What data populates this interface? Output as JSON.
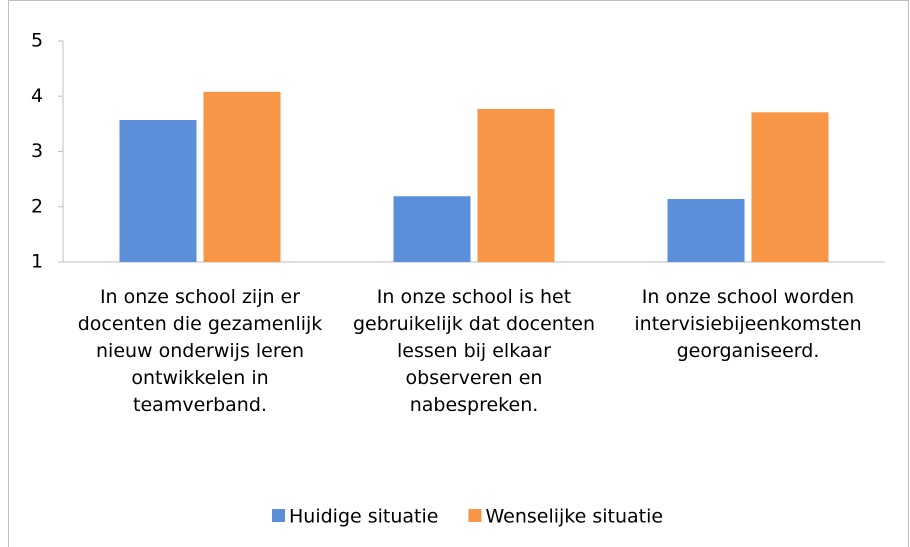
{
  "chart_data": {
    "type": "bar",
    "categories": [
      "In onze school zijn er docenten die gezamenlijk nieuw onderwijs leren ontwikkelen in teamverband.",
      "In onze school is het gebruikelijk dat docenten lessen bij elkaar observeren en nabespreken.",
      "In onze school worden intervisiebijeenkomsten georganiseerd."
    ],
    "series": [
      {
        "name": "Huidige situatie",
        "color": "#5b8fd9",
        "values": [
          3.57,
          2.19,
          2.14
        ]
      },
      {
        "name": "Wenselijke situatie",
        "color": "#f79646",
        "values": [
          4.08,
          3.77,
          3.71
        ]
      }
    ],
    "ylim": [
      1,
      5
    ],
    "yticks": [
      1,
      2,
      3,
      4,
      5
    ],
    "grid": false,
    "legend": "bottom"
  }
}
